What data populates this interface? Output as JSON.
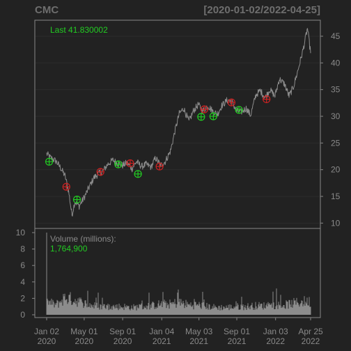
{
  "chart_data": {
    "type": "line",
    "symbol": "CMC",
    "date_range": "[2020-01-02/2022-04-25]",
    "theme": {
      "background": "#222222",
      "panel_border": "#888888",
      "series_color": "#8c8c8c",
      "up_marker": "#22cc22",
      "down_marker": "#cc2222",
      "last_label_color": "#22cc22"
    },
    "price_panel": {
      "last_label": "Last 41.830002",
      "ylim": [
        9,
        48
      ],
      "y_ticks": [
        10,
        15,
        20,
        25,
        30,
        35,
        40,
        45
      ],
      "series": [
        [
          "2020-01-02",
          23.0
        ],
        [
          "2020-01-15",
          22.2
        ],
        [
          "2020-02-01",
          21.6
        ],
        [
          "2020-02-15",
          20.4
        ],
        [
          "2020-03-01",
          18.8
        ],
        [
          "2020-03-12",
          16.0
        ],
        [
          "2020-03-23",
          11.5
        ],
        [
          "2020-04-01",
          14.0
        ],
        [
          "2020-04-15",
          13.2
        ],
        [
          "2020-05-01",
          14.8
        ],
        [
          "2020-05-15",
          16.5
        ],
        [
          "2020-06-01",
          18.5
        ],
        [
          "2020-06-15",
          19.2
        ],
        [
          "2020-07-01",
          19.8
        ],
        [
          "2020-07-15",
          21.0
        ],
        [
          "2020-08-01",
          21.8
        ],
        [
          "2020-08-15",
          21.2
        ],
        [
          "2020-09-01",
          20.8
        ],
        [
          "2020-09-15",
          21.3
        ],
        [
          "2020-10-01",
          20.2
        ],
        [
          "2020-10-15",
          21.5
        ],
        [
          "2020-11-01",
          20.6
        ],
        [
          "2020-11-15",
          21.0
        ],
        [
          "2020-12-01",
          20.5
        ],
        [
          "2020-12-15",
          22.2
        ],
        [
          "2021-01-01",
          20.8
        ],
        [
          "2021-01-15",
          21.5
        ],
        [
          "2021-02-01",
          23.5
        ],
        [
          "2021-02-15",
          27.2
        ],
        [
          "2021-03-01",
          30.5
        ],
        [
          "2021-03-15",
          31.5
        ],
        [
          "2021-04-01",
          29.0
        ],
        [
          "2021-04-15",
          31.0
        ],
        [
          "2021-05-01",
          32.2
        ],
        [
          "2021-05-15",
          31.0
        ],
        [
          "2021-06-01",
          32.0
        ],
        [
          "2021-06-15",
          31.0
        ],
        [
          "2021-07-01",
          30.4
        ],
        [
          "2021-07-15",
          32.0
        ],
        [
          "2021-08-01",
          33.0
        ],
        [
          "2021-08-15",
          32.8
        ],
        [
          "2021-09-01",
          31.0
        ],
        [
          "2021-09-15",
          30.8
        ],
        [
          "2021-10-01",
          31.5
        ],
        [
          "2021-10-15",
          30.2
        ],
        [
          "2021-11-01",
          34.0
        ],
        [
          "2021-11-15",
          34.8
        ],
        [
          "2021-12-01",
          33.5
        ],
        [
          "2021-12-15",
          35.0
        ],
        [
          "2022-01-01",
          33.8
        ],
        [
          "2022-01-15",
          37.0
        ],
        [
          "2022-02-01",
          36.0
        ],
        [
          "2022-02-15",
          33.8
        ],
        [
          "2022-03-01",
          35.5
        ],
        [
          "2022-03-15",
          38.5
        ],
        [
          "2022-04-01",
          42.5
        ],
        [
          "2022-04-15",
          46.5
        ],
        [
          "2022-04-25",
          41.83
        ]
      ],
      "signals": [
        {
          "date": "2020-01-10",
          "value": 21.5,
          "type": "up"
        },
        {
          "date": "2020-03-05",
          "value": 16.8,
          "type": "down"
        },
        {
          "date": "2020-04-08",
          "value": 14.4,
          "type": "up"
        },
        {
          "date": "2020-06-22",
          "value": 19.6,
          "type": "down"
        },
        {
          "date": "2020-08-18",
          "value": 21.0,
          "type": "up"
        },
        {
          "date": "2020-09-25",
          "value": 21.2,
          "type": "down"
        },
        {
          "date": "2020-10-20",
          "value": 19.2,
          "type": "up"
        },
        {
          "date": "2020-12-28",
          "value": 20.6,
          "type": "down"
        },
        {
          "date": "2021-05-10",
          "value": 29.9,
          "type": "up"
        },
        {
          "date": "2021-05-20",
          "value": 31.3,
          "type": "down"
        },
        {
          "date": "2021-06-18",
          "value": 30.0,
          "type": "up"
        },
        {
          "date": "2021-08-15",
          "value": 32.6,
          "type": "down"
        },
        {
          "date": "2021-09-08",
          "value": 31.2,
          "type": "up"
        },
        {
          "date": "2021-12-05",
          "value": 33.2,
          "type": "down"
        }
      ]
    },
    "volume_panel": {
      "label": "Volume (millions):",
      "value_label": "1,764,900",
      "ylim": [
        0,
        10
      ],
      "y_ticks": [
        0,
        2,
        4,
        6,
        8,
        10
      ],
      "peak": {
        "date": "2020-01-02",
        "value": 10.0
      },
      "levels": [
        [
          "2020-01-01",
          1.6
        ],
        [
          "2020-02-01",
          1.2
        ],
        [
          "2020-03-01",
          2.1
        ],
        [
          "2020-04-01",
          1.8
        ],
        [
          "2020-05-01",
          1.4
        ],
        [
          "2020-06-01",
          1.1
        ],
        [
          "2020-07-01",
          1.0
        ],
        [
          "2020-08-01",
          1.0
        ],
        [
          "2020-09-01",
          1.0
        ],
        [
          "2020-10-01",
          0.9
        ],
        [
          "2020-11-01",
          1.0
        ],
        [
          "2020-12-01",
          1.1
        ],
        [
          "2021-01-01",
          1.3
        ],
        [
          "2021-02-01",
          1.3
        ],
        [
          "2021-03-01",
          1.5
        ],
        [
          "2021-04-01",
          1.2
        ],
        [
          "2021-05-01",
          1.2
        ],
        [
          "2021-06-01",
          1.0
        ],
        [
          "2021-07-01",
          0.9
        ],
        [
          "2021-08-01",
          0.9
        ],
        [
          "2021-09-01",
          1.0
        ],
        [
          "2021-10-01",
          1.0
        ],
        [
          "2021-11-01",
          1.1
        ],
        [
          "2021-12-01",
          1.1
        ],
        [
          "2022-01-01",
          1.2
        ],
        [
          "2022-02-01",
          1.2
        ],
        [
          "2022-03-01",
          1.4
        ],
        [
          "2022-04-01",
          1.6
        ]
      ]
    },
    "x_ticks": [
      {
        "date": "2020-01-02",
        "line1": "Jan 02",
        "line2": "2020"
      },
      {
        "date": "2020-05-01",
        "line1": "May 01",
        "line2": "2020"
      },
      {
        "date": "2020-09-01",
        "line1": "Sep 01",
        "line2": "2020"
      },
      {
        "date": "2021-01-04",
        "line1": "Jan 04",
        "line2": "2021"
      },
      {
        "date": "2021-05-03",
        "line1": "May 03",
        "line2": "2021"
      },
      {
        "date": "2021-09-01",
        "line1": "Sep 01",
        "line2": "2021"
      },
      {
        "date": "2022-01-03",
        "line1": "Jan 03",
        "line2": "2022"
      },
      {
        "date": "2022-04-25",
        "line1": "Apr 25",
        "line2": "2022"
      }
    ]
  }
}
